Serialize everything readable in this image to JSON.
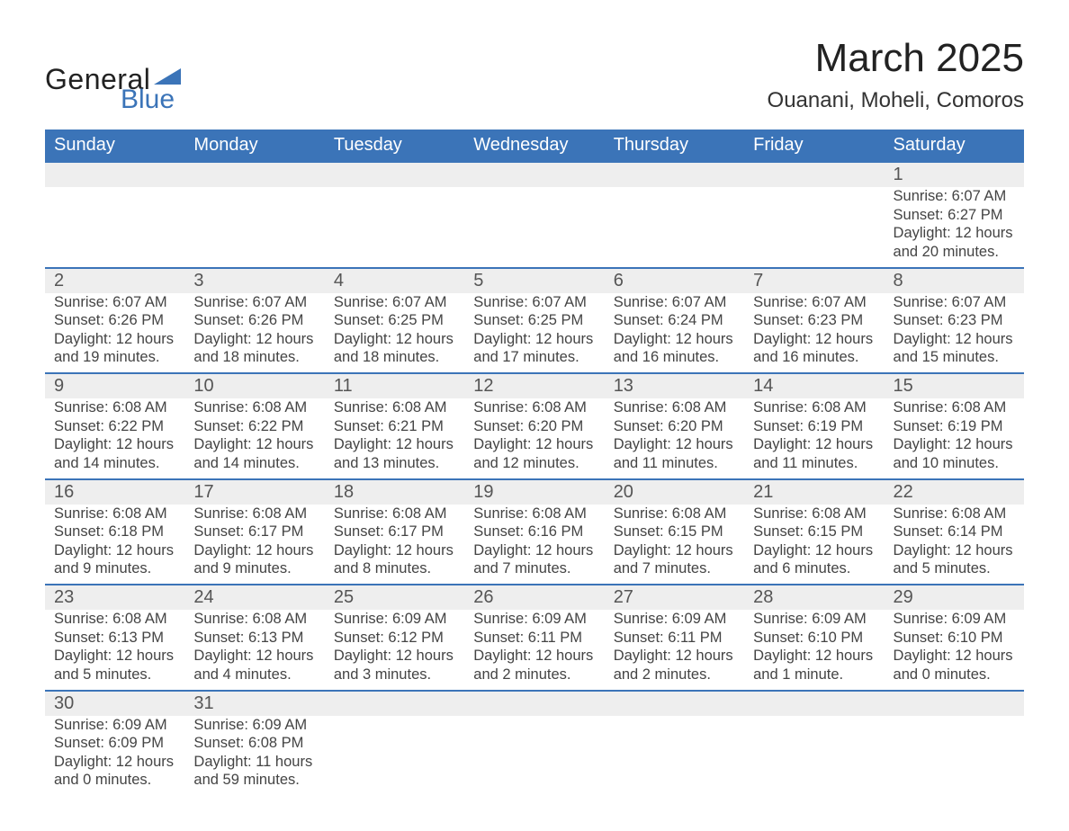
{
  "logo": {
    "text1": "General",
    "text2": "Blue",
    "tri_color": "#3b74b8"
  },
  "title": "March 2025",
  "location": "Ouanani, Moheli, Comoros",
  "colors": {
    "header_bg": "#3b74b8",
    "header_text": "#ffffff",
    "row_border": "#3b74b8",
    "daynum_bg": "#eeeeee",
    "body_text": "#444444",
    "page_bg": "#ffffff"
  },
  "typography": {
    "title_fontsize": 44,
    "location_fontsize": 24,
    "dayheader_fontsize": 20,
    "daynum_fontsize": 20,
    "detail_fontsize": 16.5,
    "font_family": "Arial"
  },
  "day_headers": [
    "Sunday",
    "Monday",
    "Tuesday",
    "Wednesday",
    "Thursday",
    "Friday",
    "Saturday"
  ],
  "weeks": [
    [
      null,
      null,
      null,
      null,
      null,
      null,
      {
        "n": "1",
        "sunrise": "6:07 AM",
        "sunset": "6:27 PM",
        "daylight": "12 hours and 20 minutes."
      }
    ],
    [
      {
        "n": "2",
        "sunrise": "6:07 AM",
        "sunset": "6:26 PM",
        "daylight": "12 hours and 19 minutes."
      },
      {
        "n": "3",
        "sunrise": "6:07 AM",
        "sunset": "6:26 PM",
        "daylight": "12 hours and 18 minutes."
      },
      {
        "n": "4",
        "sunrise": "6:07 AM",
        "sunset": "6:25 PM",
        "daylight": "12 hours and 18 minutes."
      },
      {
        "n": "5",
        "sunrise": "6:07 AM",
        "sunset": "6:25 PM",
        "daylight": "12 hours and 17 minutes."
      },
      {
        "n": "6",
        "sunrise": "6:07 AM",
        "sunset": "6:24 PM",
        "daylight": "12 hours and 16 minutes."
      },
      {
        "n": "7",
        "sunrise": "6:07 AM",
        "sunset": "6:23 PM",
        "daylight": "12 hours and 16 minutes."
      },
      {
        "n": "8",
        "sunrise": "6:07 AM",
        "sunset": "6:23 PM",
        "daylight": "12 hours and 15 minutes."
      }
    ],
    [
      {
        "n": "9",
        "sunrise": "6:08 AM",
        "sunset": "6:22 PM",
        "daylight": "12 hours and 14 minutes."
      },
      {
        "n": "10",
        "sunrise": "6:08 AM",
        "sunset": "6:22 PM",
        "daylight": "12 hours and 14 minutes."
      },
      {
        "n": "11",
        "sunrise": "6:08 AM",
        "sunset": "6:21 PM",
        "daylight": "12 hours and 13 minutes."
      },
      {
        "n": "12",
        "sunrise": "6:08 AM",
        "sunset": "6:20 PM",
        "daylight": "12 hours and 12 minutes."
      },
      {
        "n": "13",
        "sunrise": "6:08 AM",
        "sunset": "6:20 PM",
        "daylight": "12 hours and 11 minutes."
      },
      {
        "n": "14",
        "sunrise": "6:08 AM",
        "sunset": "6:19 PM",
        "daylight": "12 hours and 11 minutes."
      },
      {
        "n": "15",
        "sunrise": "6:08 AM",
        "sunset": "6:19 PM",
        "daylight": "12 hours and 10 minutes."
      }
    ],
    [
      {
        "n": "16",
        "sunrise": "6:08 AM",
        "sunset": "6:18 PM",
        "daylight": "12 hours and 9 minutes."
      },
      {
        "n": "17",
        "sunrise": "6:08 AM",
        "sunset": "6:17 PM",
        "daylight": "12 hours and 9 minutes."
      },
      {
        "n": "18",
        "sunrise": "6:08 AM",
        "sunset": "6:17 PM",
        "daylight": "12 hours and 8 minutes."
      },
      {
        "n": "19",
        "sunrise": "6:08 AM",
        "sunset": "6:16 PM",
        "daylight": "12 hours and 7 minutes."
      },
      {
        "n": "20",
        "sunrise": "6:08 AM",
        "sunset": "6:15 PM",
        "daylight": "12 hours and 7 minutes."
      },
      {
        "n": "21",
        "sunrise": "6:08 AM",
        "sunset": "6:15 PM",
        "daylight": "12 hours and 6 minutes."
      },
      {
        "n": "22",
        "sunrise": "6:08 AM",
        "sunset": "6:14 PM",
        "daylight": "12 hours and 5 minutes."
      }
    ],
    [
      {
        "n": "23",
        "sunrise": "6:08 AM",
        "sunset": "6:13 PM",
        "daylight": "12 hours and 5 minutes."
      },
      {
        "n": "24",
        "sunrise": "6:08 AM",
        "sunset": "6:13 PM",
        "daylight": "12 hours and 4 minutes."
      },
      {
        "n": "25",
        "sunrise": "6:09 AM",
        "sunset": "6:12 PM",
        "daylight": "12 hours and 3 minutes."
      },
      {
        "n": "26",
        "sunrise": "6:09 AM",
        "sunset": "6:11 PM",
        "daylight": "12 hours and 2 minutes."
      },
      {
        "n": "27",
        "sunrise": "6:09 AM",
        "sunset": "6:11 PM",
        "daylight": "12 hours and 2 minutes."
      },
      {
        "n": "28",
        "sunrise": "6:09 AM",
        "sunset": "6:10 PM",
        "daylight": "12 hours and 1 minute."
      },
      {
        "n": "29",
        "sunrise": "6:09 AM",
        "sunset": "6:10 PM",
        "daylight": "12 hours and 0 minutes."
      }
    ],
    [
      {
        "n": "30",
        "sunrise": "6:09 AM",
        "sunset": "6:09 PM",
        "daylight": "12 hours and 0 minutes."
      },
      {
        "n": "31",
        "sunrise": "6:09 AM",
        "sunset": "6:08 PM",
        "daylight": "11 hours and 59 minutes."
      },
      null,
      null,
      null,
      null,
      null
    ]
  ],
  "labels": {
    "sunrise": "Sunrise:",
    "sunset": "Sunset:",
    "daylight": "Daylight:"
  }
}
